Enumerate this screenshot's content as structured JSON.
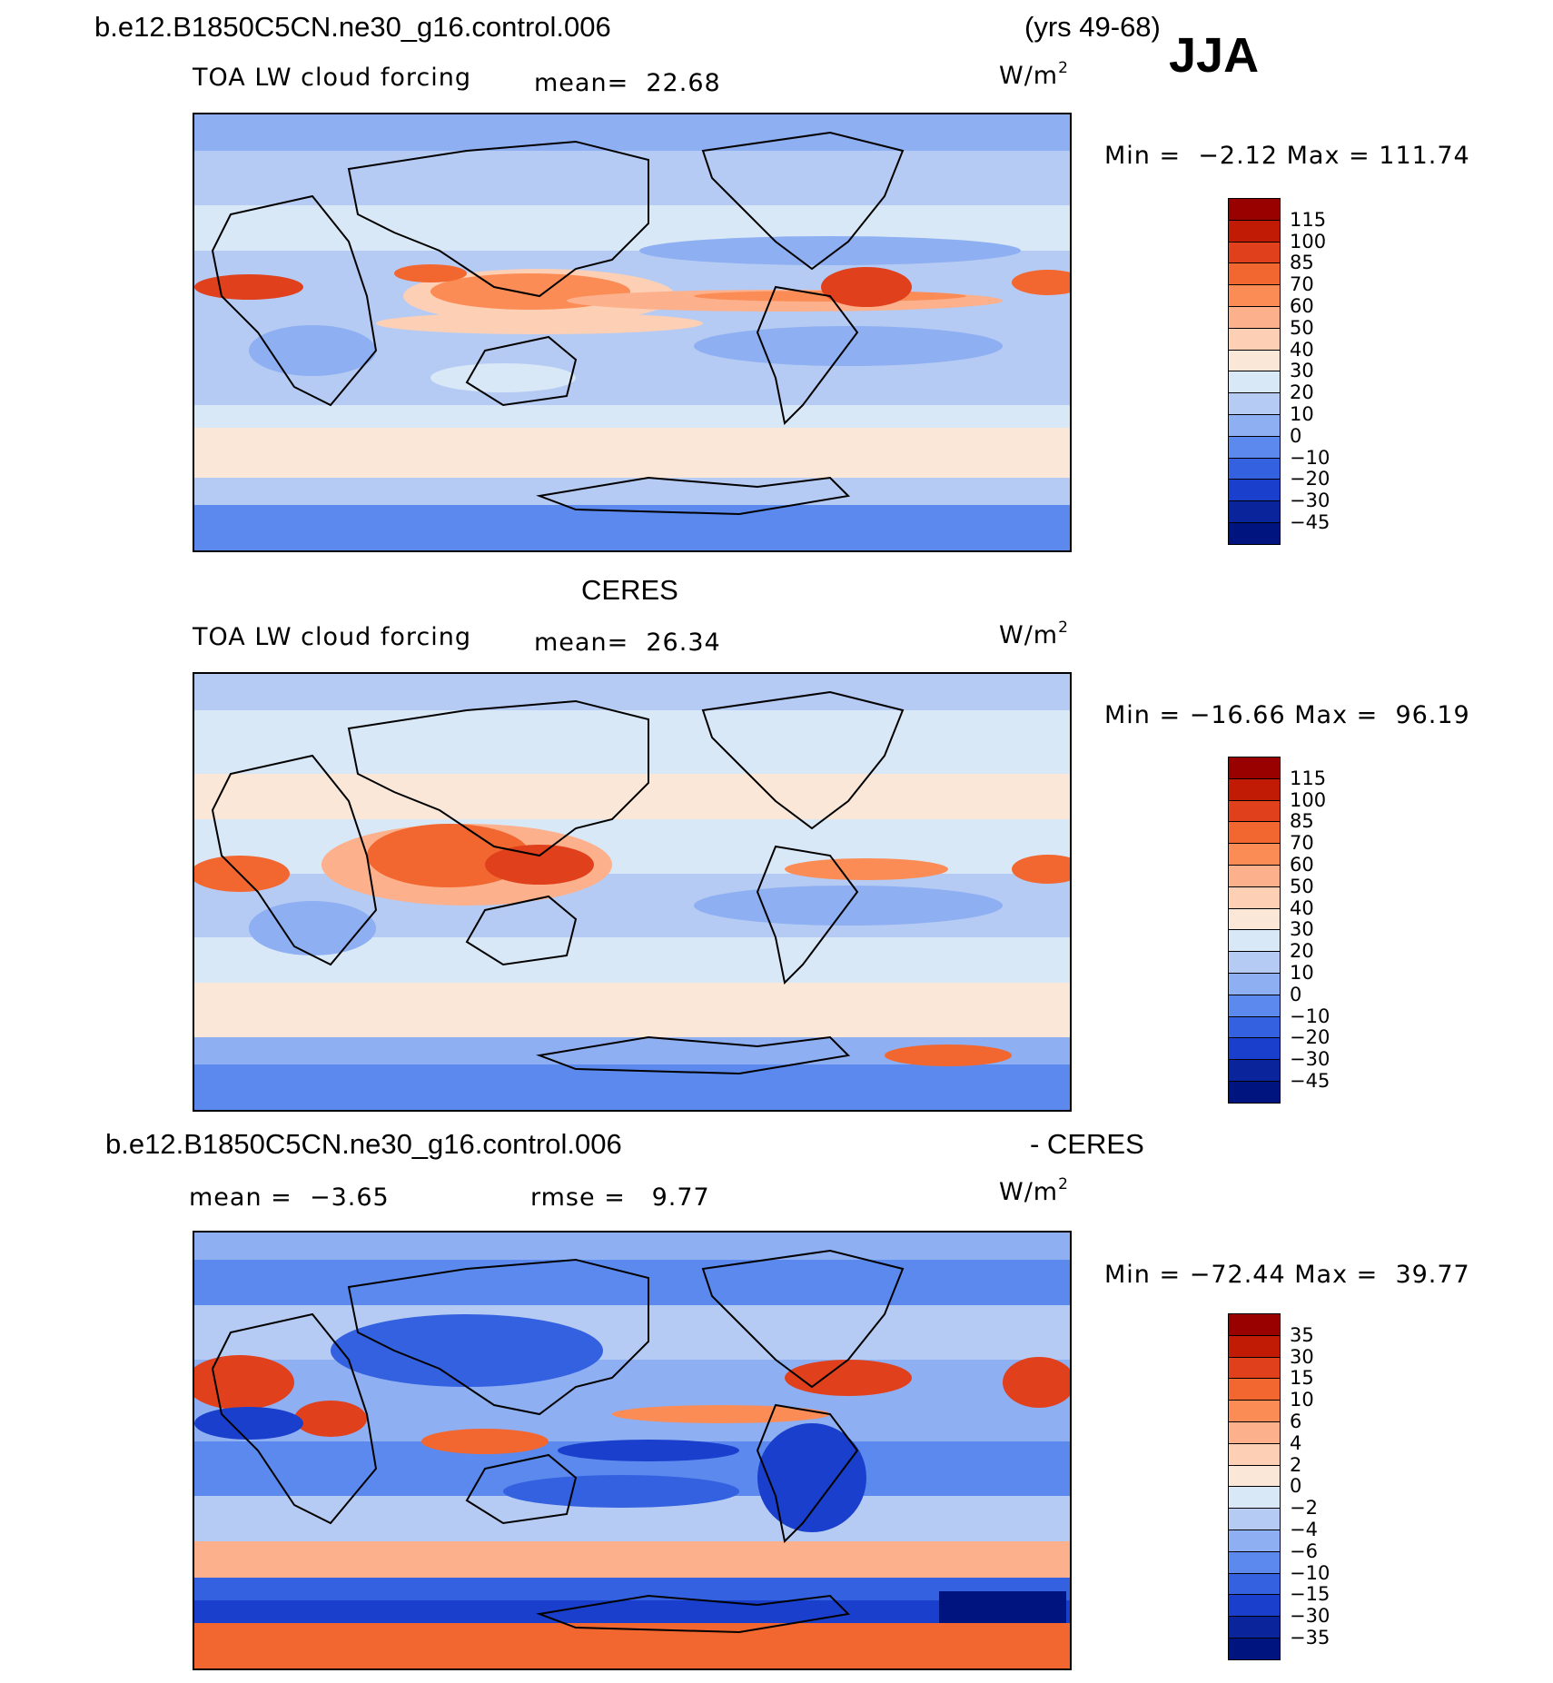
{
  "header": {
    "case_name": "b.e12.B1850C5CN.ne30_g16.control.006",
    "years": "(yrs 49-68)",
    "season": "JJA"
  },
  "panel1": {
    "title": "",
    "field": "TOA LW cloud forcing",
    "mean_label": "mean=",
    "mean_value": "22.68",
    "units_base": "W/m",
    "units_exp": "2",
    "min_label": "Min =",
    "min_value": "−2.12",
    "max_label": "Max =",
    "max_value": "111.74"
  },
  "panel2": {
    "title": "CERES",
    "field": "TOA LW cloud forcing",
    "mean_label": "mean=",
    "mean_value": "26.34",
    "units_base": "W/m",
    "units_exp": "2",
    "min_label": "Min =",
    "min_value": "−16.66",
    "max_label": "Max =",
    "max_value": "96.19"
  },
  "panel3": {
    "title_left": "b.e12.B1850C5CN.ne30_g16.control.006",
    "title_right": "- CERES",
    "mean_label": "mean =",
    "mean_value": "−3.65",
    "rmse_label": "rmse =",
    "rmse_value": "9.77",
    "units_base": "W/m",
    "units_exp": "2",
    "min_label": "Min =",
    "min_value": "−72.44",
    "max_label": "Max =",
    "max_value": "39.77"
  },
  "chart_data": [
    {
      "type": "heatmap",
      "title": "b.e12.B1850C5CN.ne30_g16.control.006 (yrs 49-68) JJA",
      "subtitle": "TOA LW cloud forcing",
      "units": "W/m2",
      "mean": 22.68,
      "min": -2.12,
      "max": 111.74,
      "colorbar_levels": [
        "115",
        "100",
        "85",
        "70",
        "60",
        "50",
        "40",
        "30",
        "20",
        "10",
        "0",
        "−10",
        "−20",
        "−30",
        "−45"
      ],
      "colorbar_colors": [
        "#990000",
        "#c21b05",
        "#e0401c",
        "#f2672f",
        "#fb8c55",
        "#fcb08c",
        "#fdd0b5",
        "#fbe7d8",
        "#d9e8f7",
        "#b5cbf3",
        "#8eaff2",
        "#5b89ee",
        "#3461e0",
        "#1a3fcc",
        "#0a259c",
        "#001480"
      ]
    },
    {
      "type": "heatmap",
      "title": "CERES",
      "subtitle": "TOA LW cloud forcing",
      "units": "W/m2",
      "mean": 26.34,
      "min": -16.66,
      "max": 96.19,
      "colorbar_levels": [
        "115",
        "100",
        "85",
        "70",
        "60",
        "50",
        "40",
        "30",
        "20",
        "10",
        "0",
        "−10",
        "−20",
        "−30",
        "−45"
      ],
      "colorbar_colors": [
        "#990000",
        "#c21b05",
        "#e0401c",
        "#f2672f",
        "#fb8c55",
        "#fcb08c",
        "#fdd0b5",
        "#fbe7d8",
        "#d9e8f7",
        "#b5cbf3",
        "#8eaff2",
        "#5b89ee",
        "#3461e0",
        "#1a3fcc",
        "#0a259c",
        "#001480"
      ]
    },
    {
      "type": "heatmap",
      "title": "b.e12.B1850C5CN.ne30_g16.control.006 - CERES",
      "units": "W/m2",
      "mean": -3.65,
      "rmse": 9.77,
      "min": -72.44,
      "max": 39.77,
      "colorbar_levels": [
        "35",
        "30",
        "15",
        "10",
        "6",
        "4",
        "2",
        "0",
        "−2",
        "−4",
        "−6",
        "−10",
        "−15",
        "−30",
        "−35"
      ],
      "colorbar_colors": [
        "#990000",
        "#c21b05",
        "#e0401c",
        "#f2672f",
        "#fb8c55",
        "#fcb08c",
        "#fdd0b5",
        "#fbe7d8",
        "#d9e8f7",
        "#b5cbf3",
        "#8eaff2",
        "#5b89ee",
        "#3461e0",
        "#1a3fcc",
        "#0a259c",
        "#001480"
      ]
    }
  ]
}
